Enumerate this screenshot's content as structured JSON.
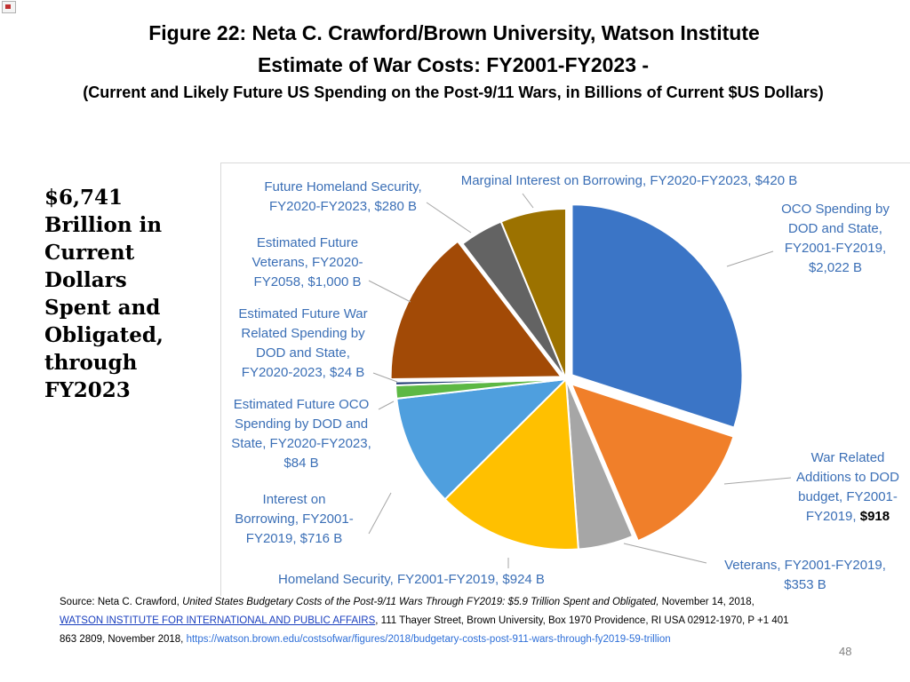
{
  "header": {
    "line1": "Figure 22: Neta C. Crawford/Brown University, Watson Institute",
    "line2": "Estimate of War Costs: FY2001-FY2023 -",
    "line3": "(Current and Likely Future US Spending on the Post-9/11 Wars, in Billions of Current $US Dollars)"
  },
  "side_text": [
    "$6,741",
    "Brillion in",
    "Current",
    "Dollars",
    "Spent and",
    "Obligated,",
    "through",
    "FY2023"
  ],
  "chart_data": {
    "type": "pie",
    "title": "",
    "unit": "Billions of Current $US Dollars",
    "start_angle_deg": 0,
    "direction": "clockwise",
    "slices": [
      {
        "label": "OCO Spending by DOD and State, FY2001-FY2019",
        "value": 2022,
        "value_text": "$2,022 B",
        "color": "#3b75c6",
        "label_lines": [
          "OCO Spending by",
          "DOD and State,",
          "FY2001-FY2019,",
          "$2,022 B"
        ]
      },
      {
        "label": "War Related Additions to DOD budget, FY2001-FY2019",
        "value": 918,
        "value_text": "$918",
        "color": "#f07f2a",
        "label_lines": [
          "War Related",
          "Additions to DOD",
          "budget, FY2001-",
          "FY2019,"
        ]
      },
      {
        "label": "Veterans, FY2001-FY2019",
        "value": 353,
        "value_text": "$353 B",
        "color": "#a6a6a6",
        "label_lines": [
          "Veterans, FY2001-FY2019,",
          "$353 B"
        ]
      },
      {
        "label": "Homeland Security, FY2001-FY2019",
        "value": 924,
        "value_text": "$924 B",
        "color": "#ffc000",
        "label_lines": [
          "Homeland Security,  FY2001-FY2019,  $924 B"
        ]
      },
      {
        "label": "Interest on Borrowing, FY2001-FY2019",
        "value": 716,
        "value_text": "$716 B",
        "color": "#4f9fde",
        "label_lines": [
          "Interest on",
          "Borrowing, FY2001-",
          "FY2019,  $716 B"
        ]
      },
      {
        "label": "Estimated Future OCO Spending by DOD and State, FY2020-FY2023",
        "value": 84,
        "value_text": "$84 B",
        "color": "#5db844",
        "label_lines": [
          "Estimated Future OCO",
          "Spending by DOD and",
          "State, FY2020-FY2023,",
          "$84 B"
        ]
      },
      {
        "label": "Estimated Future War Related Spending by DOD and State, FY2020-2023",
        "value": 24,
        "value_text": "$24 B",
        "color": "#1f3b73",
        "label_lines": [
          "Estimated Future War",
          "Related Spending by",
          "DOD and State,",
          "FY2020-2023,  $24 B"
        ]
      },
      {
        "label": "Estimated Future Veterans, FY2020-FY2058",
        "value": 1000,
        "value_text": "$1,000 B",
        "color": "#a24a06",
        "label_lines": [
          "Estimated Future",
          "Veterans, FY2020-",
          "FY2058,  $1,000 B"
        ]
      },
      {
        "label": "Future Homeland Security, FY2020-FY2023",
        "value": 280,
        "value_text": "$280 B",
        "color": "#636363",
        "label_lines": [
          "Future Homeland Security,",
          "FY2020-FY2023,  $280 B"
        ]
      },
      {
        "label": "Marginal Interest on Borrowing, FY2020-FY2023",
        "value": 420,
        "value_text": "$420  B",
        "color": "#9c7200",
        "label_lines": [
          "Marginal Interest on Borrowing, FY2020-FY2023,  $420  B"
        ]
      }
    ]
  },
  "source": {
    "prefix": "Source: Neta C. Crawford, ",
    "italic": "United States Budgetary Costs of the Post-9/11 Wars Through FY2019: $5.9 Trillion Spent and Obligated,",
    "date": "  November 14, 2018,",
    "org_link": "WATSON INSTITUTE FOR INTERNATIONAL AND PUBLIC AFFAIRS",
    "address": ", 111 Thayer Street,   Brown University, Box 1970   Providence, RI USA   02912-1970, P +1 401",
    "phone_date": "863 2809, November 2018, ",
    "url": "https://watson.brown.edu/costsofwar/figures/2018/budgetary-costs-post-911-wars-through-fy2019-59-trillion"
  },
  "page_number": "48"
}
